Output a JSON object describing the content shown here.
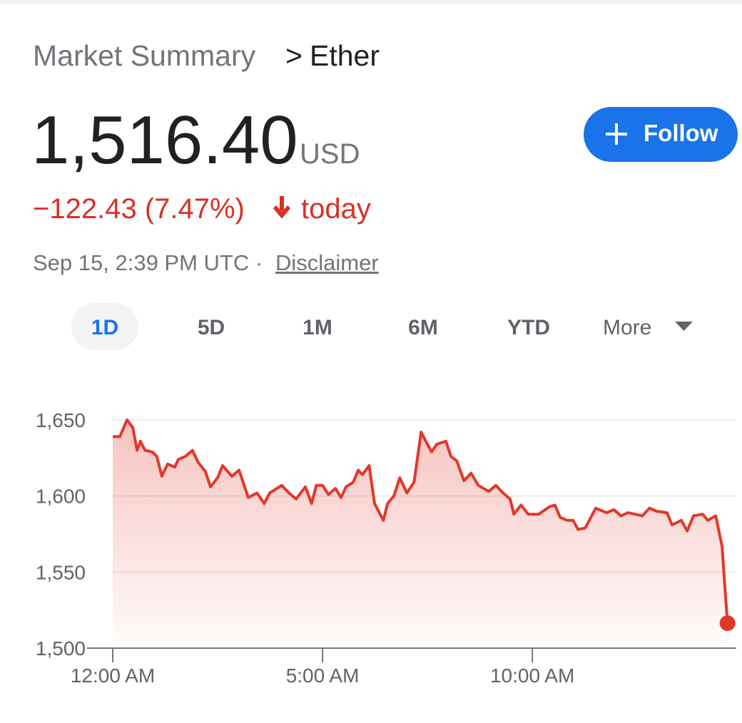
{
  "header": {
    "section": "Market Summary",
    "separator": ">",
    "name": "Ether"
  },
  "quote": {
    "price": "1,516.40",
    "currency": "USD",
    "change": "−122.43 (7.47%)",
    "change_suffix": "today",
    "timestamp": "Sep 15, 2:39 PM UTC ·",
    "disclaimer": "Disclaimer"
  },
  "follow_button": "Follow",
  "tabs": [
    "1D",
    "5D",
    "1M",
    "6M",
    "YTD",
    "More"
  ],
  "selected_tab": 0,
  "chart_data": {
    "type": "line",
    "x": [
      0,
      0.17,
      0.34,
      0.48,
      0.58,
      0.66,
      0.77,
      0.94,
      1.05,
      1.17,
      1.31,
      1.48,
      1.56,
      1.73,
      1.9,
      2.04,
      2.21,
      2.33,
      2.5,
      2.62,
      2.84,
      3.01,
      3.23,
      3.44,
      3.61,
      3.74,
      4.03,
      4.2,
      4.37,
      4.59,
      4.74,
      4.85,
      5.0,
      5.14,
      5.31,
      5.44,
      5.56,
      5.73,
      5.85,
      5.95,
      6.11,
      6.24,
      6.45,
      6.55,
      6.7,
      6.84,
      7.01,
      7.18,
      7.35,
      7.48,
      7.6,
      7.72,
      7.94,
      8.06,
      8.2,
      8.37,
      8.54,
      8.71,
      8.96,
      9.13,
      9.3,
      9.47,
      9.56,
      9.73,
      9.9,
      10.15,
      10.41,
      10.54,
      10.66,
      10.83,
      10.97,
      11.09,
      11.26,
      11.51,
      11.77,
      11.94,
      12.11,
      12.28,
      12.62,
      12.79,
      12.96,
      13.21,
      13.33,
      13.55,
      13.69,
      13.84,
      14.06,
      14.18,
      14.37,
      14.52,
      14.65
    ],
    "series": [
      {
        "name": "Ether",
        "color": "#e2382c",
        "values": [
          1639,
          1639,
          1650,
          1645,
          1630,
          1636,
          1630,
          1629,
          1626,
          1613,
          1621,
          1619,
          1624,
          1626,
          1630,
          1622,
          1616,
          1606,
          1612,
          1620,
          1613,
          1617,
          1599,
          1602,
          1595,
          1602,
          1607,
          1602,
          1598,
          1606,
          1595,
          1607,
          1607,
          1601,
          1605,
          1599,
          1606,
          1609,
          1617,
          1614,
          1620,
          1595,
          1584,
          1595,
          1600,
          1612,
          1602,
          1609,
          1642,
          1635,
          1629,
          1634,
          1636,
          1626,
          1623,
          1610,
          1615,
          1607,
          1603,
          1607,
          1602,
          1598,
          1588,
          1594,
          1588,
          1588,
          1593,
          1594,
          1586,
          1584,
          1584,
          1578,
          1579,
          1592,
          1589,
          1591,
          1587,
          1589,
          1587,
          1592,
          1590,
          1589,
          1581,
          1584,
          1577,
          1587,
          1588,
          1584,
          1587,
          1567,
          1516.4
        ]
      }
    ],
    "xlim": [
      0,
      14.86
    ],
    "xticks": [
      {
        "value": 0,
        "label": "12:00 AM"
      },
      {
        "value": 5,
        "label": "5:00 AM"
      },
      {
        "value": 10,
        "label": "10:00 AM"
      }
    ],
    "ylim": [
      1500,
      1660
    ],
    "yticks": [
      {
        "value": 1500,
        "label": "1,500"
      },
      {
        "value": 1550,
        "label": "1,550"
      },
      {
        "value": 1600,
        "label": "1,600"
      },
      {
        "value": 1650,
        "label": "1,650"
      }
    ],
    "grid": true
  }
}
